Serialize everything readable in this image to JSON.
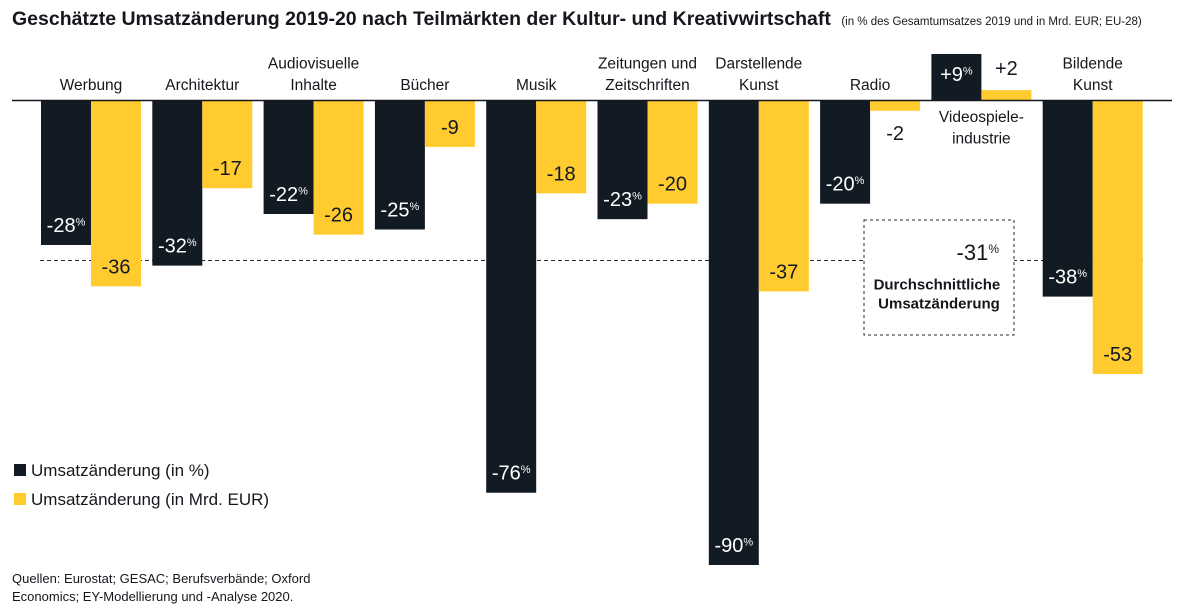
{
  "chart_data": {
    "type": "bar",
    "title": "Geschätzte Umsatzänderung 2019-20 nach Teilmärkten der Kultur- und Kreativwirtschaft",
    "subtitle": "(in % des Gesamtumsatzes 2019 und in Mrd. EUR; EU-28)",
    "categories": [
      [
        "Werbung"
      ],
      [
        "Architektur"
      ],
      [
        "Audiovisuelle",
        "Inhalte"
      ],
      [
        "Bücher"
      ],
      [
        "Musik"
      ],
      [
        "Zeitungen und",
        "Zeitschriften"
      ],
      [
        "Darstellende",
        "Kunst"
      ],
      [
        "Radio"
      ],
      [
        "Videospiele-",
        "industrie"
      ],
      [
        "Bildende",
        "Kunst"
      ]
    ],
    "series": [
      {
        "name": "Umsatzänderung (in %)",
        "color": "#121a23",
        "label_color": "#ffffff",
        "unit_suffix": "%",
        "values": [
          -28,
          -32,
          -22,
          -25,
          -76,
          -23,
          -90,
          -20,
          9,
          -38
        ],
        "value_labels": [
          "-28",
          "-32",
          "-22",
          "-25",
          "-76",
          "-23",
          "-90",
          "-20",
          "+9",
          "-38"
        ]
      },
      {
        "name": "Umsatzänderung (in Mrd. EUR)",
        "color": "#ffcb2f",
        "label_color": "#121a23",
        "values": [
          -36,
          -17,
          -26,
          -9,
          -18,
          -20,
          -37,
          -2,
          2,
          -53
        ],
        "value_labels": [
          "-36",
          "-17",
          "-26",
          "-9",
          "-18",
          "-20",
          "-37",
          "-2",
          "+2",
          "-53"
        ]
      }
    ],
    "average": {
      "value": -31,
      "value_label": "-31",
      "unit_suffix": "%",
      "description": [
        "Durchschnittliche",
        "Umsatzänderung"
      ]
    },
    "ylim": [
      -90,
      9
    ]
  },
  "source_note": {
    "lines": [
      "Quellen: Eurostat; GESAC; Berufsverbände; Oxford",
      "Economics; EY-Modellierung und -Analyse 2020."
    ]
  }
}
